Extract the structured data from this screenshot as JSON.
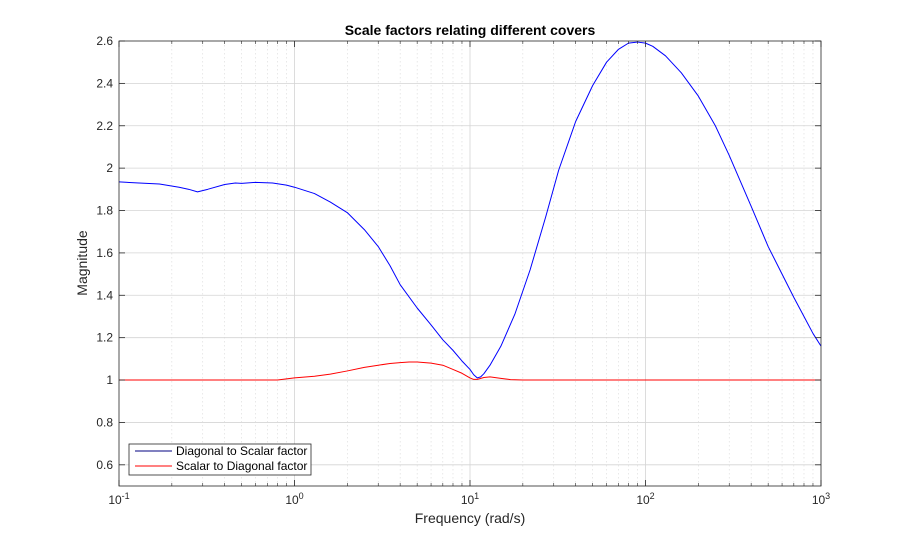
{
  "chart_data": {
    "type": "line",
    "title": "Scale factors relating different covers",
    "xlabel": "Frequency (rad/s)",
    "ylabel": "Magnitude",
    "xscale": "log",
    "xlim": [
      0.1,
      1000
    ],
    "ylim": [
      0.5,
      2.6
    ],
    "grid": true,
    "minor_grid": true,
    "legend_position": "bottom-left",
    "x_ticks": [
      {
        "value": 0.1,
        "base": "10",
        "exp": "-1"
      },
      {
        "value": 1,
        "base": "10",
        "exp": "0"
      },
      {
        "value": 10,
        "base": "10",
        "exp": "1"
      },
      {
        "value": 100,
        "base": "10",
        "exp": "2"
      },
      {
        "value": 1000,
        "base": "10",
        "exp": "3"
      }
    ],
    "y_ticks": [
      {
        "value": 0.6,
        "label": "0.6"
      },
      {
        "value": 0.8,
        "label": "0.8"
      },
      {
        "value": 1.0,
        "label": "1"
      },
      {
        "value": 1.2,
        "label": "1.2"
      },
      {
        "value": 1.4,
        "label": "1.4"
      },
      {
        "value": 1.6,
        "label": "1.6"
      },
      {
        "value": 1.8,
        "label": "1.8"
      },
      {
        "value": 2.0,
        "label": "2"
      },
      {
        "value": 2.2,
        "label": "2.2"
      },
      {
        "value": 2.4,
        "label": "2.4"
      },
      {
        "value": 2.6,
        "label": "2.6"
      }
    ],
    "legend": [
      {
        "name": "Diagonal to Scalar factor",
        "color": "#000080"
      },
      {
        "name": "Scalar to Diagonal factor",
        "color": "#ff0000"
      }
    ],
    "series": [
      {
        "name": "Diagonal to Scalar factor",
        "color": "#0000ff",
        "points": [
          [
            0.1,
            1.935
          ],
          [
            0.13,
            1.93
          ],
          [
            0.17,
            1.925
          ],
          [
            0.22,
            1.91
          ],
          [
            0.25,
            1.9
          ],
          [
            0.28,
            1.888
          ],
          [
            0.32,
            1.9
          ],
          [
            0.4,
            1.923
          ],
          [
            0.46,
            1.93
          ],
          [
            0.5,
            1.928
          ],
          [
            0.6,
            1.933
          ],
          [
            0.75,
            1.93
          ],
          [
            0.9,
            1.92
          ],
          [
            1.0,
            1.91
          ],
          [
            1.3,
            1.88
          ],
          [
            1.6,
            1.84
          ],
          [
            2.0,
            1.79
          ],
          [
            2.5,
            1.71
          ],
          [
            3.0,
            1.63
          ],
          [
            3.5,
            1.54
          ],
          [
            4.0,
            1.45
          ],
          [
            5.0,
            1.34
          ],
          [
            6.0,
            1.26
          ],
          [
            7.0,
            1.19
          ],
          [
            8.0,
            1.14
          ],
          [
            9.0,
            1.09
          ],
          [
            10.0,
            1.05
          ],
          [
            10.5,
            1.025
          ],
          [
            11.0,
            1.01
          ],
          [
            11.5,
            1.015
          ],
          [
            12.0,
            1.03
          ],
          [
            13.0,
            1.07
          ],
          [
            15.0,
            1.16
          ],
          [
            18.0,
            1.31
          ],
          [
            22.0,
            1.52
          ],
          [
            27.0,
            1.77
          ],
          [
            32.0,
            1.99
          ],
          [
            40.0,
            2.22
          ],
          [
            50.0,
            2.39
          ],
          [
            60.0,
            2.5
          ],
          [
            70.0,
            2.56
          ],
          [
            80.0,
            2.59
          ],
          [
            90.0,
            2.595
          ],
          [
            100.0,
            2.59
          ],
          [
            110.0,
            2.575
          ],
          [
            130.0,
            2.53
          ],
          [
            160.0,
            2.45
          ],
          [
            200.0,
            2.34
          ],
          [
            250.0,
            2.2
          ],
          [
            300.0,
            2.06
          ],
          [
            400.0,
            1.82
          ],
          [
            500.0,
            1.63
          ],
          [
            600.0,
            1.5
          ],
          [
            700.0,
            1.39
          ],
          [
            800.0,
            1.3
          ],
          [
            900.0,
            1.22
          ],
          [
            1000.0,
            1.16
          ]
        ]
      },
      {
        "name": "Scalar to Diagonal factor",
        "color": "#ff0000",
        "points": [
          [
            0.1,
            1.0
          ],
          [
            0.5,
            1.0
          ],
          [
            0.8,
            1.0
          ],
          [
            1.0,
            1.01
          ],
          [
            1.3,
            1.018
          ],
          [
            1.6,
            1.028
          ],
          [
            2.0,
            1.043
          ],
          [
            2.5,
            1.06
          ],
          [
            3.0,
            1.07
          ],
          [
            3.5,
            1.078
          ],
          [
            4.0,
            1.082
          ],
          [
            4.5,
            1.085
          ],
          [
            5.0,
            1.085
          ],
          [
            6.0,
            1.08
          ],
          [
            7.0,
            1.07
          ],
          [
            8.0,
            1.05
          ],
          [
            9.0,
            1.032
          ],
          [
            10.0,
            1.01
          ],
          [
            10.5,
            1.003
          ],
          [
            11.0,
            1.003
          ],
          [
            12.0,
            1.012
          ],
          [
            13.0,
            1.015
          ],
          [
            15.0,
            1.008
          ],
          [
            17.0,
            1.002
          ],
          [
            20.0,
            1.0
          ],
          [
            50.0,
            1.0
          ],
          [
            100.0,
            1.0
          ],
          [
            1000.0,
            1.0
          ]
        ]
      }
    ]
  }
}
